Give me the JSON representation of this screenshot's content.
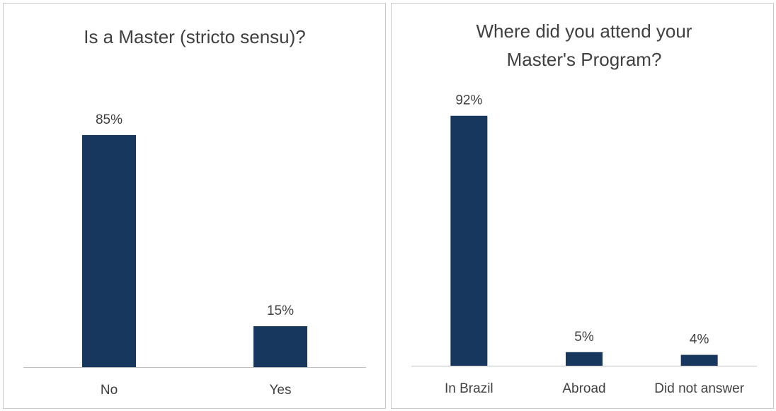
{
  "chart_data": [
    {
      "type": "bar",
      "title": "Is a Master (stricto sensu)?",
      "categories": [
        "No",
        "Yes"
      ],
      "values": [
        85,
        15
      ],
      "value_labels": [
        "85%",
        "15%"
      ],
      "xlabel": "",
      "ylabel": "",
      "ylim": [
        0,
        100
      ],
      "grid": false,
      "bar_color": "#17375e"
    },
    {
      "type": "bar",
      "title": "Where did you attend your Master's Program?",
      "title_lines": [
        "Where did you attend your",
        "Master's Program?"
      ],
      "categories": [
        "In Brazil",
        "Abroad",
        "Did not answer"
      ],
      "values": [
        92,
        5,
        4
      ],
      "value_labels": [
        "92%",
        "5%",
        "4%"
      ],
      "xlabel": "",
      "ylabel": "",
      "ylim": [
        0,
        100
      ],
      "grid": false,
      "bar_color": "#17375e"
    }
  ]
}
